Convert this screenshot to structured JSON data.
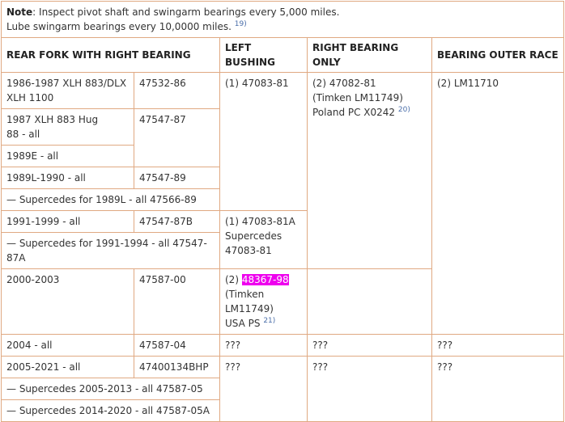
{
  "note": {
    "label": "Note",
    "line1": ": Inspect pivot shaft and swingarm bearings every 5,000 miles.",
    "line2": "Lube swingarm bearings every 10,0000 miles.",
    "ref": "19)"
  },
  "headers": {
    "rear_fork": "REAR FORK WITH RIGHT BEARING",
    "left_bushing": "LEFT BUSHING",
    "right_bearing": "RIGHT BEARING ONLY",
    "outer_race": "BEARING OUTER RACE"
  },
  "rows": {
    "r1_model_a": "1986-1987 XLH 883/DLX",
    "r1_model_b": "XLH 1100",
    "r1_part": "47532-86",
    "left_bushing_1": "(1) 47083-81",
    "right_bearing_1_a": "(2) 47082-81",
    "right_bearing_1_b": "(Timken LM11749)",
    "right_bearing_1_c": "Poland PC X0242",
    "right_bearing_1_ref": "20)",
    "outer_race_1": "(2) LM11710",
    "r2_model_a": "1987 XLH 883 Hug",
    "r2_model_b": "88 - all",
    "r2_part": "47547-87",
    "r3_model": "1989E - all",
    "r4_model": "1989L-1990 - all",
    "r4_part": "47547-89",
    "r5_supersede": "— Supercedes for 1989L - all 47566-89",
    "r6_model": "1991-1999 - all",
    "r6_part": "47547-87B",
    "left_bushing_2_a": "(1) 47083-81A",
    "left_bushing_2_b": "Supercedes",
    "left_bushing_2_c": "47083-81",
    "r7_supersede": "— Supercedes for 1991-1994 - all 47547-87A",
    "r8_model": "2000-2003",
    "r8_part": "47587-00",
    "right_bearing_2_a_prefix": "(2) ",
    "right_bearing_2_a_part": "48367-98",
    "right_bearing_2_b": "(Timken LM11749)",
    "right_bearing_2_c": "USA PS",
    "right_bearing_2_ref": "21)",
    "r9_model": "2004 - all",
    "r9_part": "47587-04",
    "r9_left": "???",
    "r9_right": "???",
    "r9_race": "???",
    "r10_model": "2005-2021 - all",
    "r10_part": "47400134BHP",
    "r10_left": "???",
    "r10_right": "???",
    "r10_race": "???",
    "r11_supersede": "— Supercedes 2005-2013 - all 47587-05",
    "r12_supersede": "— Supercedes 2014-2020 - all 47587-05A"
  },
  "colors": {
    "border": "#e0a982",
    "highlight": "#ee00ee"
  }
}
